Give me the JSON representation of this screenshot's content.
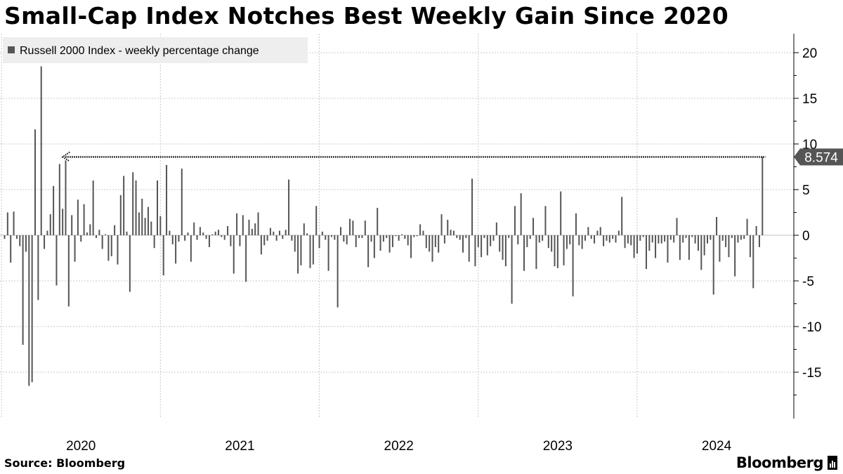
{
  "title": "Small-Cap Index Notches Best Weekly Gain Since 2020",
  "source_label": "Source:",
  "source_name": "Bloomberg",
  "brand": "Bloomberg",
  "colors": {
    "bar": "#555555",
    "axis": "#000000",
    "grid": "#c8c8c8",
    "legend_bg": "#eeeeee",
    "callout_bg": "#555555"
  },
  "chart_data": {
    "type": "bar",
    "title": "Small-Cap Index Notches Best Weekly Gain Since 2020",
    "legend": [
      {
        "name": "Russell 2000 Index - weekly percentage change",
        "placement": "top-left"
      }
    ],
    "ylim": [
      -20,
      22
    ],
    "yticks": [
      20,
      15,
      10,
      5,
      0,
      -5,
      -10,
      -15
    ],
    "y_axis_side": "right",
    "grid": true,
    "x_tick_labels": [
      "2020",
      "2021",
      "2022",
      "2023",
      "2024"
    ],
    "x_tick_weeks": [
      25,
      77,
      129,
      181,
      233
    ],
    "last_value_label": "8.574",
    "reference_line": {
      "value": 8.574,
      "from_week": 19,
      "to_week": 249,
      "style": "dotted",
      "arrow_at": "start"
    },
    "series": [
      {
        "name": "Russell 2000 Index - weekly percentage change",
        "start_week": 0,
        "frequency": "weekly",
        "values": [
          -0.4,
          2.5,
          -3,
          2.6,
          -0.4,
          -1.2,
          -12,
          -1.8,
          -16.5,
          -16.1,
          11.6,
          -7.1,
          18.5,
          -1.5,
          0.5,
          2.3,
          5.4,
          -5.5,
          7.8,
          2.9,
          8.2,
          -7.8,
          2.2,
          -2.9,
          3.9,
          -0.7,
          3.4,
          0.3,
          1.2,
          6.0,
          -0.3,
          0.6,
          -1.5,
          0.1,
          -2.8,
          -2.3,
          1.1,
          -3.2,
          4.4,
          6.5,
          0.4,
          -6.2,
          6.9,
          6.0,
          2.5,
          4.0,
          1.9,
          3.1,
          1.5,
          -1.4,
          6.0,
          2.1,
          -4.4,
          7.7,
          0.5,
          -1.0,
          -3.1,
          -0.7,
          7.3,
          -0.6,
          0.3,
          -2.9,
          1.4,
          -0.5,
          0.9,
          0.3,
          -0.4,
          -1.3,
          0.1,
          0.4,
          0.6,
          -0.2,
          -0.5,
          1.0,
          -1.2,
          -4.2,
          2.4,
          -1.2,
          2.2,
          -5.1,
          1.7,
          0.7,
          1.3,
          2.5,
          -2.1,
          -1.1,
          -0.6,
          0.8,
          0.4,
          -0.6,
          0.5,
          -0.4,
          0.6,
          6.1,
          -0.6,
          -1.8,
          -4.2,
          -3.3,
          1.3,
          0.2,
          -3.6,
          -3.2,
          3.2,
          -1.4,
          0.4,
          -0.5,
          -3.9,
          -0.2,
          -0.5,
          -7.9,
          0.9,
          -0.7,
          -1.0,
          1.8,
          1.6,
          -1.3,
          -0.3,
          -0.3,
          1.6,
          -3.5,
          -0.7,
          -2.5,
          3.0,
          -1.7,
          -0.7,
          -0.3,
          -1.9,
          -1.3,
          -0.1,
          -0.6,
          0.1,
          -0.4,
          -1.1,
          -2.5,
          -0.2,
          -0.1,
          1.2,
          0.5,
          -1.4,
          -1.8,
          -2.9,
          -1.3,
          -1.9,
          2.3,
          -0.9,
          1.7,
          0.6,
          0.5,
          -0.3,
          -0.5,
          -1.9,
          -0.3,
          -2.9,
          6.2,
          -3.4,
          -1.3,
          -2.4,
          -0.3,
          -2.2,
          -1.2,
          -0.6,
          1.4,
          -1.8,
          -2.7,
          -3.4,
          -0.3,
          -7.5,
          3.2,
          -1.0,
          4.6,
          -3.9,
          -1.3,
          -0.4,
          1.9,
          -3.7,
          -0.8,
          -0.6,
          3.2,
          -1.4,
          -1.8,
          -3.4,
          -3.6,
          4.8,
          -3.3,
          -1.5,
          -1.0,
          -6.7,
          2.4,
          -1.1,
          -1.5,
          -0.6,
          0.9,
          -0.4,
          -0.9,
          0.5,
          0.9,
          -1.2,
          -0.6,
          -0.8,
          -0.4,
          -0.8,
          0.5,
          4.2,
          -1.4,
          -0.9,
          -1.1,
          -2.5,
          -2.0,
          -0.6,
          -0.2,
          -3.7,
          -1.7,
          -0.8,
          -2.5,
          -0.9,
          -0.9,
          -0.7,
          -3.0,
          -0.5,
          -0.8,
          1.9,
          -2.7,
          -0.8,
          -0.3,
          -2.7,
          -0.2,
          -0.9,
          -1.7,
          -3.8,
          -2.2,
          -0.9,
          -0.5,
          -6.5,
          2.0,
          -2.9,
          -0.6,
          -1.3,
          -2.4,
          -0.3,
          -4.5,
          -0.8,
          -0.5,
          -0.4,
          1.8,
          -2.4,
          -5.8,
          1.0,
          -1.3,
          8.574
        ]
      }
    ]
  }
}
